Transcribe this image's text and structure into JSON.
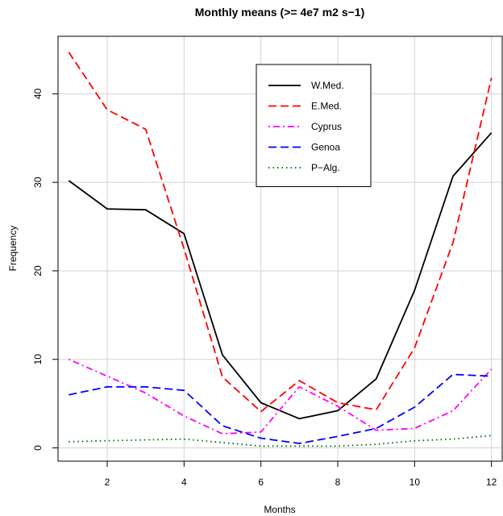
{
  "chart_data": {
    "type": "line",
    "title": "Monthly means (>= 4e7 m2 s−1)",
    "xlabel": "Months",
    "ylabel": "Frequency",
    "xlim": [
      0.72,
      12.28
    ],
    "ylim": [
      -1.5,
      46.5
    ],
    "xticks": [
      2,
      4,
      6,
      8,
      10,
      12
    ],
    "yticks": [
      0,
      10,
      20,
      30,
      40
    ],
    "grid": true,
    "legend_position": "top-center",
    "x": [
      1,
      2,
      3,
      4,
      5,
      6,
      7,
      8,
      9,
      10,
      11,
      12
    ],
    "series": [
      {
        "name": "W.Med.",
        "color": "#000000",
        "dash": "solid",
        "values": [
          30.2,
          27.0,
          26.9,
          24.2,
          10.5,
          5.1,
          3.3,
          4.2,
          7.8,
          17.8,
          30.7,
          35.6
        ]
      },
      {
        "name": "E.Med.",
        "color": "#ff0000",
        "dash": "dashed",
        "values": [
          44.7,
          38.2,
          36.0,
          22.5,
          8.0,
          4.1,
          7.6,
          5.1,
          4.3,
          11.3,
          23.2,
          41.8
        ]
      },
      {
        "name": "Cyprus",
        "color": "#ff00ff",
        "dash": "dotdash",
        "values": [
          10.0,
          8.1,
          6.2,
          3.6,
          1.6,
          1.8,
          6.9,
          4.7,
          2.0,
          2.2,
          4.2,
          8.9
        ]
      },
      {
        "name": "Genoa",
        "color": "#0000ff",
        "dash": "dashed",
        "values": [
          6.0,
          6.9,
          6.9,
          6.5,
          2.5,
          1.1,
          0.5,
          1.3,
          2.2,
          4.6,
          8.3,
          8.1
        ]
      },
      {
        "name": "P−Alg.",
        "color": "#006400",
        "dash": "dotted",
        "values": [
          0.7,
          0.8,
          0.9,
          1.0,
          0.6,
          0.2,
          0.2,
          0.2,
          0.4,
          0.8,
          1.0,
          1.4
        ]
      }
    ]
  }
}
